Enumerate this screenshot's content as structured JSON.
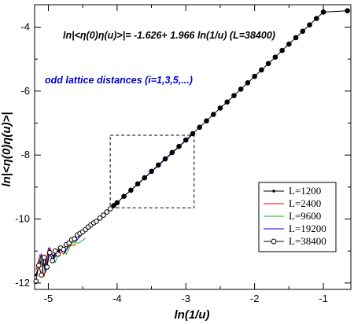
{
  "chart_data": {
    "type": "line",
    "xlabel": "ln(1/u)",
    "ylabel": "ln|<η(0)η(u)>|",
    "xlim": [
      -5.2,
      -0.6
    ],
    "ylim": [
      -12.2,
      -3.3
    ],
    "xticks": [
      -5,
      -4,
      -3,
      -2,
      -1
    ],
    "yticks": [
      -12,
      -10,
      -8,
      -6,
      -4
    ],
    "grid": false,
    "legend_position": "lower-right",
    "annotations": [
      {
        "text": "ln|<η(0)η(u)>|= -1.626+ 1.966 ln(1/u) (L=38400)",
        "color": "#000000"
      },
      {
        "text": "odd lattice distances (i=1,3,5,...)",
        "color": "#0000cc"
      }
    ],
    "inset_box": {
      "x": [
        -4.1,
        -2.88
      ],
      "y": [
        -9.65,
        -7.38
      ]
    },
    "fit": {
      "intercept": -1.626,
      "slope": 1.966
    },
    "series": [
      {
        "name": "L=1200",
        "color": "#000000",
        "marker": "dot",
        "x": [
          -5.18,
          -5.12,
          -5.06,
          -5.0,
          -4.92,
          -4.84,
          -4.76
        ],
        "y": [
          -11.75,
          -11.35,
          -11.45,
          -11.05,
          -11.15,
          -10.95,
          -11.0
        ]
      },
      {
        "name": "L=2400",
        "color": "#ff0000",
        "marker": "none",
        "x": [
          -5.18,
          -5.12,
          -5.06,
          -5.0,
          -4.94,
          -4.86,
          -4.78,
          -4.7,
          -4.6
        ],
        "y": [
          -11.6,
          -11.1,
          -11.8,
          -10.9,
          -11.3,
          -10.95,
          -11.1,
          -10.85,
          -10.8
        ]
      },
      {
        "name": "L=9600",
        "color": "#00c000",
        "marker": "none",
        "x": [
          -5.16,
          -5.1,
          -5.04,
          -4.98,
          -4.9,
          -4.82,
          -4.74,
          -4.66,
          -4.56,
          -4.46
        ],
        "y": [
          -11.55,
          -11.2,
          -11.7,
          -10.95,
          -11.35,
          -10.9,
          -11.1,
          -10.75,
          -10.75,
          -10.6
        ]
      },
      {
        "name": "L=19200",
        "color": "#0000ff",
        "marker": "none",
        "x": [
          -5.16,
          -5.1,
          -5.04,
          -4.98,
          -4.92,
          -4.84,
          -4.76,
          -4.68,
          -4.6,
          -4.5,
          -4.4,
          -4.3,
          -4.2,
          -4.1,
          -4.0,
          -3.9,
          -3.8,
          -3.7,
          -3.6,
          -3.5,
          -3.4,
          -3.3,
          -3.2,
          -3.1,
          -3.0,
          -2.92
        ],
        "y": [
          -11.5,
          -11.1,
          -11.65,
          -10.9,
          -11.25,
          -10.95,
          -11.05,
          -10.7,
          -10.7,
          -10.45,
          -10.3,
          -10.09,
          -9.88,
          -9.68,
          -9.49,
          -9.29,
          -9.1,
          -8.91,
          -8.72,
          -8.52,
          -8.33,
          -8.13,
          -7.94,
          -7.74,
          -7.55,
          -7.39
        ]
      },
      {
        "name": "L=38400",
        "color": "#000000",
        "marker": "circle",
        "x": [
          -5.18,
          -5.14,
          -5.1,
          -5.06,
          -5.02,
          -4.98,
          -4.94,
          -4.9,
          -4.86,
          -4.82,
          -4.78,
          -4.74,
          -4.7,
          -4.66,
          -4.62,
          -4.58,
          -4.54,
          -4.5,
          -4.46,
          -4.42,
          -4.38,
          -4.34,
          -4.3,
          -4.25,
          -4.2,
          -4.15,
          -4.1,
          -4.05,
          -4.0,
          -3.9,
          -3.8,
          -3.7,
          -3.6,
          -3.5,
          -3.4,
          -3.3,
          -3.2,
          -3.1,
          -3.0,
          -2.9,
          -2.8,
          -2.7,
          -2.6,
          -2.5,
          -2.4,
          -2.3,
          -2.2,
          -2.1,
          -2.0,
          -1.9,
          -1.8,
          -1.7,
          -1.6,
          -1.5,
          -1.4,
          -1.3,
          -1.2,
          -1.1,
          -1.0,
          -0.65
        ],
        "y": [
          -11.95,
          -11.45,
          -11.75,
          -11.2,
          -11.5,
          -11.05,
          -11.3,
          -11.0,
          -11.1,
          -10.9,
          -10.95,
          -10.8,
          -10.75,
          -10.65,
          -10.62,
          -10.5,
          -10.45,
          -10.4,
          -10.33,
          -10.25,
          -10.18,
          -10.12,
          -10.07,
          -9.97,
          -9.88,
          -9.78,
          -9.68,
          -9.58,
          -9.49,
          -9.29,
          -9.1,
          -8.9,
          -8.71,
          -8.51,
          -8.31,
          -8.12,
          -7.92,
          -7.73,
          -7.53,
          -7.33,
          -7.13,
          -6.93,
          -6.73,
          -6.53,
          -6.34,
          -6.14,
          -5.94,
          -5.74,
          -5.54,
          -5.34,
          -5.14,
          -4.94,
          -4.73,
          -4.53,
          -4.33,
          -4.13,
          -3.93,
          -3.73,
          -3.53,
          -3.49
        ]
      }
    ]
  }
}
